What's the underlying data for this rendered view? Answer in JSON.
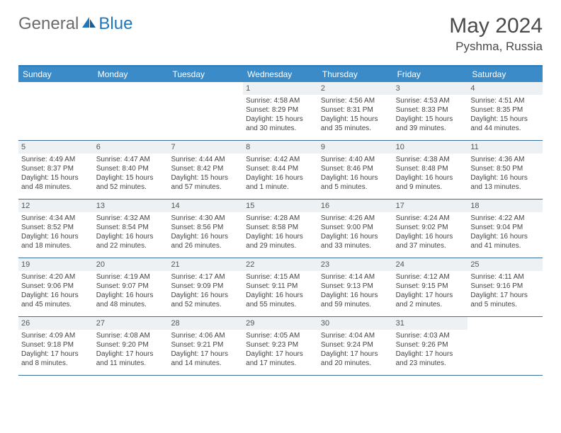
{
  "brand": {
    "part1": "General",
    "part2": "Blue"
  },
  "title": {
    "month": "May 2024",
    "location": "Pyshma, Russia"
  },
  "colors": {
    "header_bg": "#3b8bc8",
    "header_border": "#2a7ab9",
    "row_border": "#3b6f9a",
    "daybar_bg": "#eef1f3",
    "text": "#444444",
    "brand_gray": "#6b6b6b",
    "brand_blue": "#2076bc"
  },
  "weekdays": [
    "Sunday",
    "Monday",
    "Tuesday",
    "Wednesday",
    "Thursday",
    "Friday",
    "Saturday"
  ],
  "weeks": [
    [
      {
        "n": "",
        "sr": "",
        "ss": "",
        "dl": ""
      },
      {
        "n": "",
        "sr": "",
        "ss": "",
        "dl": ""
      },
      {
        "n": "",
        "sr": "",
        "ss": "",
        "dl": ""
      },
      {
        "n": "1",
        "sr": "Sunrise: 4:58 AM",
        "ss": "Sunset: 8:29 PM",
        "dl": "Daylight: 15 hours and 30 minutes."
      },
      {
        "n": "2",
        "sr": "Sunrise: 4:56 AM",
        "ss": "Sunset: 8:31 PM",
        "dl": "Daylight: 15 hours and 35 minutes."
      },
      {
        "n": "3",
        "sr": "Sunrise: 4:53 AM",
        "ss": "Sunset: 8:33 PM",
        "dl": "Daylight: 15 hours and 39 minutes."
      },
      {
        "n": "4",
        "sr": "Sunrise: 4:51 AM",
        "ss": "Sunset: 8:35 PM",
        "dl": "Daylight: 15 hours and 44 minutes."
      }
    ],
    [
      {
        "n": "5",
        "sr": "Sunrise: 4:49 AM",
        "ss": "Sunset: 8:37 PM",
        "dl": "Daylight: 15 hours and 48 minutes."
      },
      {
        "n": "6",
        "sr": "Sunrise: 4:47 AM",
        "ss": "Sunset: 8:40 PM",
        "dl": "Daylight: 15 hours and 52 minutes."
      },
      {
        "n": "7",
        "sr": "Sunrise: 4:44 AM",
        "ss": "Sunset: 8:42 PM",
        "dl": "Daylight: 15 hours and 57 minutes."
      },
      {
        "n": "8",
        "sr": "Sunrise: 4:42 AM",
        "ss": "Sunset: 8:44 PM",
        "dl": "Daylight: 16 hours and 1 minute."
      },
      {
        "n": "9",
        "sr": "Sunrise: 4:40 AM",
        "ss": "Sunset: 8:46 PM",
        "dl": "Daylight: 16 hours and 5 minutes."
      },
      {
        "n": "10",
        "sr": "Sunrise: 4:38 AM",
        "ss": "Sunset: 8:48 PM",
        "dl": "Daylight: 16 hours and 9 minutes."
      },
      {
        "n": "11",
        "sr": "Sunrise: 4:36 AM",
        "ss": "Sunset: 8:50 PM",
        "dl": "Daylight: 16 hours and 13 minutes."
      }
    ],
    [
      {
        "n": "12",
        "sr": "Sunrise: 4:34 AM",
        "ss": "Sunset: 8:52 PM",
        "dl": "Daylight: 16 hours and 18 minutes."
      },
      {
        "n": "13",
        "sr": "Sunrise: 4:32 AM",
        "ss": "Sunset: 8:54 PM",
        "dl": "Daylight: 16 hours and 22 minutes."
      },
      {
        "n": "14",
        "sr": "Sunrise: 4:30 AM",
        "ss": "Sunset: 8:56 PM",
        "dl": "Daylight: 16 hours and 26 minutes."
      },
      {
        "n": "15",
        "sr": "Sunrise: 4:28 AM",
        "ss": "Sunset: 8:58 PM",
        "dl": "Daylight: 16 hours and 29 minutes."
      },
      {
        "n": "16",
        "sr": "Sunrise: 4:26 AM",
        "ss": "Sunset: 9:00 PM",
        "dl": "Daylight: 16 hours and 33 minutes."
      },
      {
        "n": "17",
        "sr": "Sunrise: 4:24 AM",
        "ss": "Sunset: 9:02 PM",
        "dl": "Daylight: 16 hours and 37 minutes."
      },
      {
        "n": "18",
        "sr": "Sunrise: 4:22 AM",
        "ss": "Sunset: 9:04 PM",
        "dl": "Daylight: 16 hours and 41 minutes."
      }
    ],
    [
      {
        "n": "19",
        "sr": "Sunrise: 4:20 AM",
        "ss": "Sunset: 9:06 PM",
        "dl": "Daylight: 16 hours and 45 minutes."
      },
      {
        "n": "20",
        "sr": "Sunrise: 4:19 AM",
        "ss": "Sunset: 9:07 PM",
        "dl": "Daylight: 16 hours and 48 minutes."
      },
      {
        "n": "21",
        "sr": "Sunrise: 4:17 AM",
        "ss": "Sunset: 9:09 PM",
        "dl": "Daylight: 16 hours and 52 minutes."
      },
      {
        "n": "22",
        "sr": "Sunrise: 4:15 AM",
        "ss": "Sunset: 9:11 PM",
        "dl": "Daylight: 16 hours and 55 minutes."
      },
      {
        "n": "23",
        "sr": "Sunrise: 4:14 AM",
        "ss": "Sunset: 9:13 PM",
        "dl": "Daylight: 16 hours and 59 minutes."
      },
      {
        "n": "24",
        "sr": "Sunrise: 4:12 AM",
        "ss": "Sunset: 9:15 PM",
        "dl": "Daylight: 17 hours and 2 minutes."
      },
      {
        "n": "25",
        "sr": "Sunrise: 4:11 AM",
        "ss": "Sunset: 9:16 PM",
        "dl": "Daylight: 17 hours and 5 minutes."
      }
    ],
    [
      {
        "n": "26",
        "sr": "Sunrise: 4:09 AM",
        "ss": "Sunset: 9:18 PM",
        "dl": "Daylight: 17 hours and 8 minutes."
      },
      {
        "n": "27",
        "sr": "Sunrise: 4:08 AM",
        "ss": "Sunset: 9:20 PM",
        "dl": "Daylight: 17 hours and 11 minutes."
      },
      {
        "n": "28",
        "sr": "Sunrise: 4:06 AM",
        "ss": "Sunset: 9:21 PM",
        "dl": "Daylight: 17 hours and 14 minutes."
      },
      {
        "n": "29",
        "sr": "Sunrise: 4:05 AM",
        "ss": "Sunset: 9:23 PM",
        "dl": "Daylight: 17 hours and 17 minutes."
      },
      {
        "n": "30",
        "sr": "Sunrise: 4:04 AM",
        "ss": "Sunset: 9:24 PM",
        "dl": "Daylight: 17 hours and 20 minutes."
      },
      {
        "n": "31",
        "sr": "Sunrise: 4:03 AM",
        "ss": "Sunset: 9:26 PM",
        "dl": "Daylight: 17 hours and 23 minutes."
      },
      {
        "n": "",
        "sr": "",
        "ss": "",
        "dl": ""
      }
    ]
  ]
}
